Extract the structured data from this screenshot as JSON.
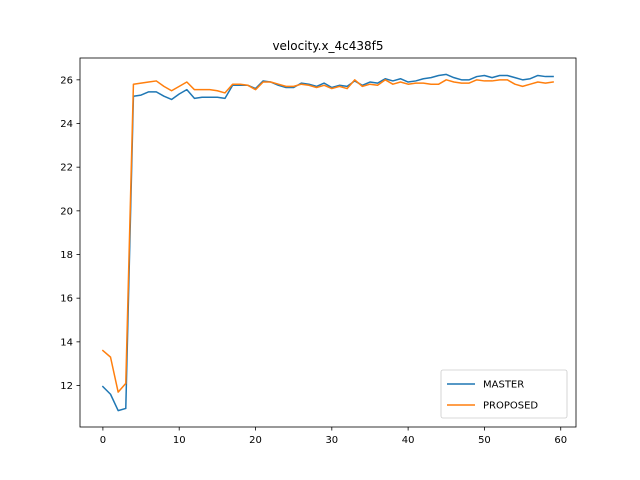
{
  "chart_data": {
    "type": "line",
    "title": "velocity.x_4c438f5",
    "xlabel": "",
    "ylabel": "",
    "xlim": [
      -3,
      62
    ],
    "ylim": [
      10.1,
      27.0
    ],
    "xticks": [
      0,
      10,
      20,
      30,
      40,
      50,
      60
    ],
    "yticks": [
      12,
      14,
      16,
      18,
      20,
      22,
      24,
      26
    ],
    "grid": false,
    "legend_position": "lower-right",
    "x": [
      0,
      1,
      2,
      3,
      4,
      5,
      6,
      7,
      8,
      9,
      10,
      11,
      12,
      13,
      14,
      15,
      16,
      17,
      18,
      19,
      20,
      21,
      22,
      23,
      24,
      25,
      26,
      27,
      28,
      29,
      30,
      31,
      32,
      33,
      34,
      35,
      36,
      37,
      38,
      39,
      40,
      41,
      42,
      43,
      44,
      45,
      46,
      47,
      48,
      49,
      50,
      51,
      52,
      53,
      54,
      55,
      56,
      57,
      58,
      59
    ],
    "series": [
      {
        "name": "MASTER",
        "color": "#1f77b4",
        "values": [
          11.95,
          11.6,
          10.85,
          10.95,
          25.25,
          25.3,
          25.45,
          25.45,
          25.25,
          25.1,
          25.35,
          25.55,
          25.15,
          25.2,
          25.2,
          25.2,
          25.15,
          25.75,
          25.75,
          25.75,
          25.6,
          25.95,
          25.9,
          25.75,
          25.65,
          25.65,
          25.85,
          25.8,
          25.7,
          25.85,
          25.65,
          25.75,
          25.7,
          25.95,
          25.75,
          25.9,
          25.85,
          26.05,
          25.95,
          26.05,
          25.9,
          25.95,
          26.05,
          26.1,
          26.2,
          26.25,
          26.1,
          26.0,
          26.0,
          26.15,
          26.2,
          26.1,
          26.2,
          26.2,
          26.1,
          26.0,
          26.05,
          26.2,
          26.15,
          26.15
        ]
      },
      {
        "name": "PROPOSED",
        "color": "#ff7f0e",
        "values": [
          13.6,
          13.3,
          11.7,
          12.1,
          25.8,
          25.85,
          25.9,
          25.95,
          25.7,
          25.5,
          25.7,
          25.9,
          25.55,
          25.55,
          25.55,
          25.5,
          25.4,
          25.8,
          25.8,
          25.75,
          25.55,
          25.9,
          25.9,
          25.8,
          25.7,
          25.7,
          25.8,
          25.75,
          25.65,
          25.75,
          25.6,
          25.7,
          25.6,
          26.0,
          25.7,
          25.8,
          25.75,
          26.0,
          25.8,
          25.9,
          25.8,
          25.85,
          25.85,
          25.8,
          25.8,
          26.0,
          25.9,
          25.85,
          25.85,
          26.0,
          25.95,
          25.95,
          26.0,
          26.0,
          25.8,
          25.7,
          25.8,
          25.9,
          25.85,
          25.9
        ]
      }
    ]
  }
}
